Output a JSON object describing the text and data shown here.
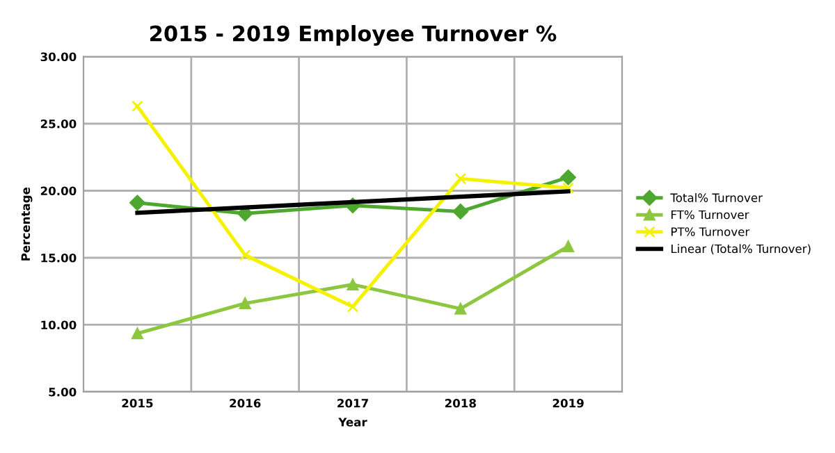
{
  "chart_data": {
    "type": "line",
    "title": "2015 - 2019 Employee Turnover %",
    "xlabel": "Year",
    "ylabel": "Percentage",
    "categories": [
      "2015",
      "2016",
      "2017",
      "2018",
      "2019"
    ],
    "series": [
      {
        "name": "Total% Turnover",
        "color": "#4ea72e",
        "marker": "diamond",
        "values": [
          19.1,
          18.3,
          18.9,
          18.45,
          21.0
        ]
      },
      {
        "name": "FT% Turnover",
        "color": "#8dc63f",
        "marker": "triangle",
        "values": [
          9.35,
          11.6,
          13.0,
          11.2,
          15.85
        ]
      },
      {
        "name": "PT% Turnover",
        "color": "#f5f200",
        "marker": "cross",
        "values": [
          26.3,
          15.2,
          11.35,
          20.9,
          20.2
        ]
      },
      {
        "name": "Linear (Total% Turnover)",
        "color": "#000000",
        "marker": "none",
        "values": [
          18.35,
          18.75,
          19.15,
          19.55,
          19.95
        ]
      }
    ],
    "ylim": [
      5,
      30
    ],
    "yticks": [
      {
        "value": 5,
        "label": "5.00"
      },
      {
        "value": 10,
        "label": "10.00"
      },
      {
        "value": 15,
        "label": "15.00"
      },
      {
        "value": 20,
        "label": "20.00"
      },
      {
        "value": 25,
        "label": "25.00"
      },
      {
        "value": 30,
        "label": "30.00"
      }
    ],
    "grid": true,
    "legend": "right",
    "line_style": "solid"
  }
}
